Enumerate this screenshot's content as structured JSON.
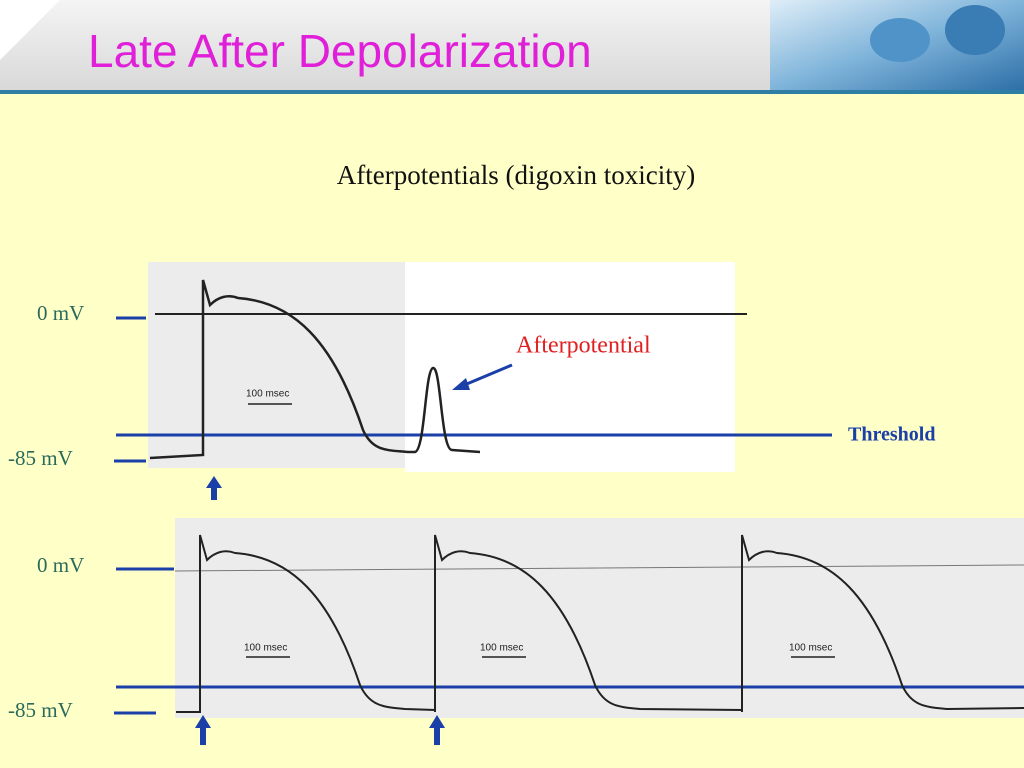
{
  "header": {
    "title": "Late After Depolarization"
  },
  "figure": {
    "title": "Afterpotentials (digoxin toxicity)",
    "panels": [
      {
        "zero_label": "0 mV",
        "rest_label": "-85 mV",
        "scale_label": "100 msec",
        "annotation": "Afterpotential",
        "threshold_label": "Threshold"
      },
      {
        "zero_label": "0 mV",
        "rest_label": "-85 mV",
        "scale_labels": [
          "100 msec",
          "100 msec",
          "100 msec"
        ]
      }
    ]
  }
}
